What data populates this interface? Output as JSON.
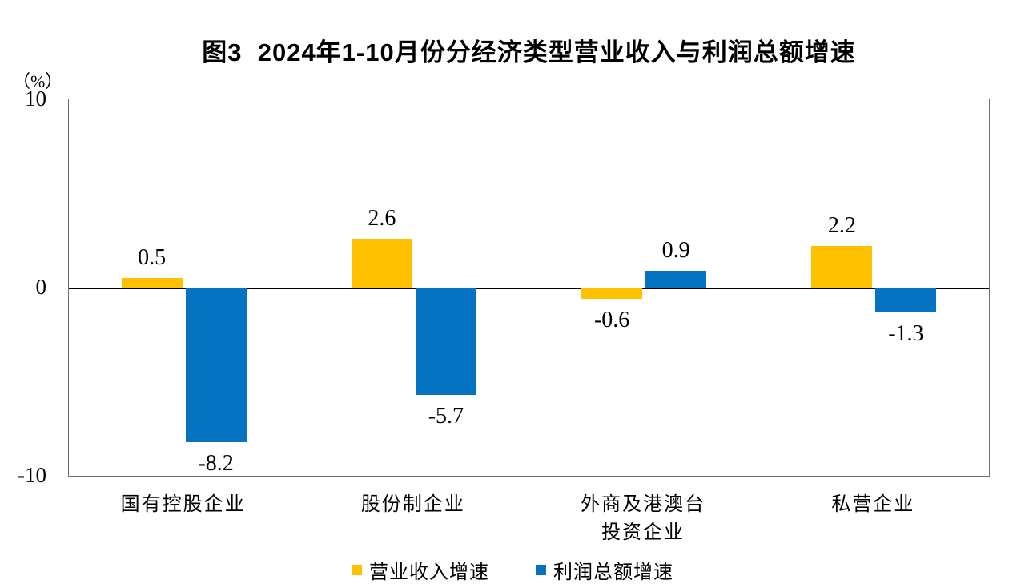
{
  "chart_data": {
    "type": "bar",
    "title": "图3  2024年1-10月份分经济类型营业收入与利润总额增速",
    "unit_label": "（%）",
    "categories": [
      "国有控股企业",
      "股份制企业",
      "外商及港澳台\n投资企业",
      "私营企业"
    ],
    "series": [
      {
        "name": "营业收入增速",
        "key": "revenue-growth",
        "color": "#FFC000",
        "values": [
          0.5,
          2.6,
          -0.6,
          2.2
        ]
      },
      {
        "name": "利润总额增速",
        "key": "profit-growth",
        "color": "#0672C2",
        "values": [
          -8.2,
          -5.7,
          0.9,
          -1.3
        ]
      }
    ],
    "ylim": [
      -10,
      10
    ],
    "yticks": [
      10,
      0,
      -10
    ],
    "xlabel": "",
    "ylabel": "（%）",
    "grid": false,
    "legend_position": "bottom"
  },
  "colors": {
    "plot_border": "#6e6e6e",
    "zero_line": "#000000",
    "bar_yellow": "#FFC000",
    "bar_blue": "#0672C2",
    "background": "#ffffff",
    "text": "#000000"
  }
}
